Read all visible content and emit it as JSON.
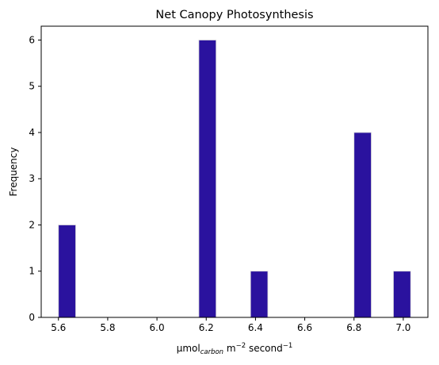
{
  "chart_data": {
    "type": "bar",
    "title": "Net Canopy Photosynthesis",
    "xlabel": {
      "base": "μmol",
      "subscript": "carbon",
      "middle": " m",
      "sup1": "−2",
      "after": " second",
      "sup2": "−1"
    },
    "ylabel": "Frequency",
    "bin_width": 0.07,
    "bars": [
      {
        "x_start": 5.6,
        "x_end": 5.67,
        "value": 2
      },
      {
        "x_start": 6.17,
        "x_end": 6.24,
        "value": 6
      },
      {
        "x_start": 6.38,
        "x_end": 6.45,
        "value": 1
      },
      {
        "x_start": 6.8,
        "x_end": 6.87,
        "value": 4
      },
      {
        "x_start": 6.96,
        "x_end": 7.03,
        "value": 1
      }
    ],
    "xlim": [
      5.53,
      7.1
    ],
    "ylim": [
      0,
      6.3
    ],
    "x_ticks": [
      5.6,
      5.8,
      6.0,
      6.2,
      6.4,
      6.6,
      6.8,
      7.0
    ],
    "x_tick_labels": [
      "5.6",
      "5.8",
      "6.0",
      "6.2",
      "6.4",
      "6.6",
      "6.8",
      "7.0"
    ],
    "y_ticks": [
      0,
      1,
      2,
      3,
      4,
      5,
      6
    ],
    "y_tick_labels": [
      "0",
      "1",
      "2",
      "3",
      "4",
      "5",
      "6"
    ],
    "bar_color": "#2a129e",
    "bar_edge_color": "#d9d9d9",
    "grid": false,
    "legend": "none"
  }
}
